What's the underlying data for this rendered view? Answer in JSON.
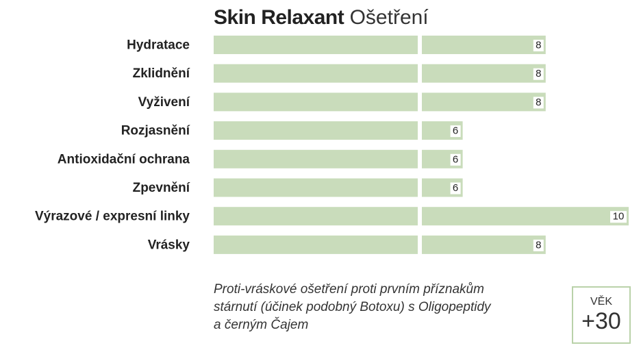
{
  "header": {
    "brand": "Skin Relaxant",
    "subtitle": "Ošetření"
  },
  "chart_data": {
    "type": "bar",
    "orientation": "horizontal",
    "categories": [
      "Hydratace",
      "Zklidnění",
      "Vyživení",
      "Rozjasnění",
      "Antioxidační ochrana",
      "Zpevnění",
      "Výrazové / expresní linky",
      "Vrásky"
    ],
    "values": [
      8,
      8,
      8,
      6,
      6,
      6,
      10,
      8
    ],
    "xlim": [
      0,
      10
    ],
    "grid": false,
    "bar_color": "#c9dcbb"
  },
  "description": [
    "Proti-vráskové ošetření proti prvním příznakům",
    "stárnutí (účinek podobný Botoxu) s Oligopeptidy",
    "a černým Čajem"
  ],
  "age_badge": {
    "label": "VĚK",
    "value": "+30"
  }
}
